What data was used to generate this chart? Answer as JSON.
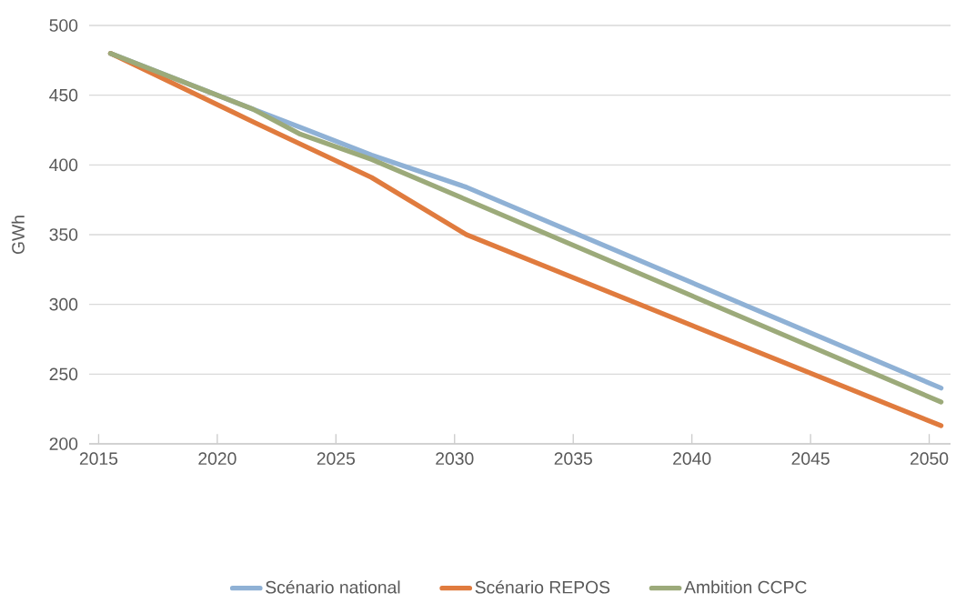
{
  "chart_data": {
    "type": "line",
    "ylabel": "GWh",
    "x": [
      2015.5,
      2021.5,
      2023.5,
      2026.5,
      2030.5,
      2050.5
    ],
    "series": [
      {
        "name": "Scénario national",
        "color": "#8fb1d5",
        "values": [
          480,
          440,
          427,
          407,
          384,
          240
        ]
      },
      {
        "name": "Scénario REPOS",
        "color": "#e07b3e",
        "values": [
          480,
          431,
          415,
          391,
          350,
          213
        ]
      },
      {
        "name": "Ambition CCPC",
        "color": "#9caa7a",
        "values": [
          480,
          440,
          422,
          404,
          375,
          230
        ]
      }
    ],
    "xlim": [
      2014.6,
      2050.9
    ],
    "xticks": [
      2015,
      2020,
      2025,
      2030,
      2035,
      2040,
      2045,
      2050
    ],
    "ylim": [
      200,
      500
    ],
    "yticks": [
      200,
      250,
      300,
      350,
      400,
      450,
      500
    ],
    "grid": "y",
    "legend": "bottom",
    "marker": "none",
    "line_style": "solid"
  }
}
